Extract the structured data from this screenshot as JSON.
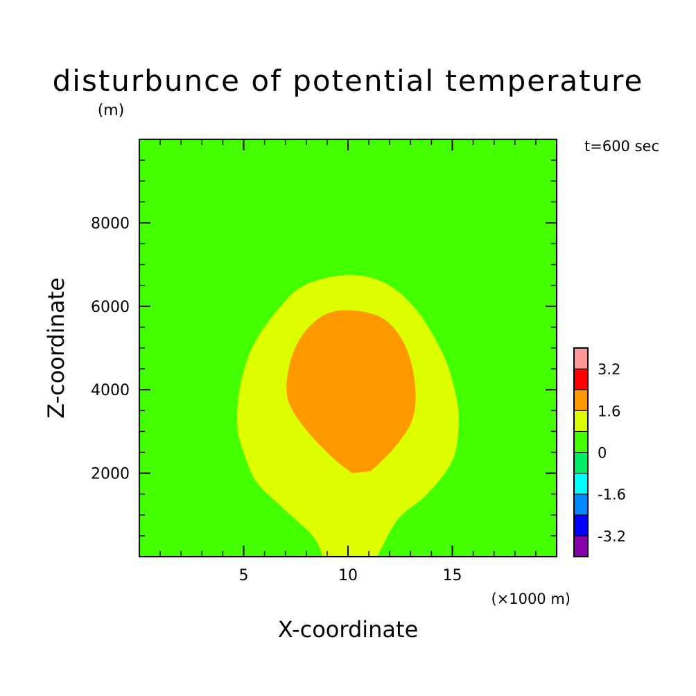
{
  "chart_data": {
    "type": "contour",
    "title": "disturbunce of potential temperature",
    "ylabel_unit": "(m)",
    "xlabel": "X-coordinate",
    "ylabel": "Z-coordinate",
    "x_unit": "(×1000 m)",
    "time_label": "t=600 sec",
    "xlim": [
      0,
      20
    ],
    "ylim": [
      0,
      10000
    ],
    "x_ticks": [
      5,
      10,
      15
    ],
    "x_tick_labels": [
      "5",
      "10",
      "15"
    ],
    "y_ticks": [
      2000,
      4000,
      6000,
      8000
    ],
    "y_tick_labels": [
      "2000",
      "4000",
      "6000",
      "8000"
    ],
    "contour_interval": 0.8,
    "colorbar": {
      "levels": [
        -4.0,
        -3.2,
        -2.4,
        -1.6,
        -0.8,
        0,
        0.8,
        1.6,
        2.4,
        3.2,
        4.0
      ],
      "colors": [
        "#8800aa",
        "#0000ff",
        "#0088ff",
        "#00ffff",
        "#00ee66",
        "#44ff00",
        "#ddff00",
        "#ff9900",
        "#ff0000",
        "#ff9999"
      ],
      "tick_labels": [
        "-3.2",
        "-1.6",
        "0",
        "1.6",
        "3.2"
      ],
      "tick_values": [
        -3.2,
        -1.6,
        0,
        1.6,
        3.2
      ]
    },
    "background_range": [
      0,
      0.8
    ],
    "regions": [
      {
        "name": "0.8 to 1.6",
        "color": "#ddff00",
        "outline": [
          [
            8.8,
            0
          ],
          [
            8.3,
            500
          ],
          [
            6.8,
            1200
          ],
          [
            5.6,
            1800
          ],
          [
            5.0,
            2500
          ],
          [
            4.7,
            3100
          ],
          [
            4.8,
            4000
          ],
          [
            5.4,
            5000
          ],
          [
            6.6,
            5900
          ],
          [
            7.9,
            6500
          ],
          [
            10.0,
            6750
          ],
          [
            11.8,
            6550
          ],
          [
            13.3,
            5900
          ],
          [
            14.6,
            4800
          ],
          [
            15.2,
            3800
          ],
          [
            15.3,
            3100
          ],
          [
            15.0,
            2300
          ],
          [
            13.8,
            1500
          ],
          [
            12.4,
            900
          ],
          [
            11.4,
            0
          ]
        ]
      },
      {
        "name": "1.6 to 2.4",
        "color": "#ff9900",
        "outline": [
          [
            10.2,
            2000
          ],
          [
            9.2,
            2400
          ],
          [
            7.9,
            3100
          ],
          [
            7.1,
            3800
          ],
          [
            7.2,
            4600
          ],
          [
            7.8,
            5300
          ],
          [
            8.9,
            5800
          ],
          [
            10.2,
            5900
          ],
          [
            11.7,
            5700
          ],
          [
            12.7,
            5100
          ],
          [
            13.2,
            4200
          ],
          [
            13.1,
            3300
          ],
          [
            12.2,
            2600
          ],
          [
            11.1,
            2050
          ]
        ]
      }
    ]
  }
}
